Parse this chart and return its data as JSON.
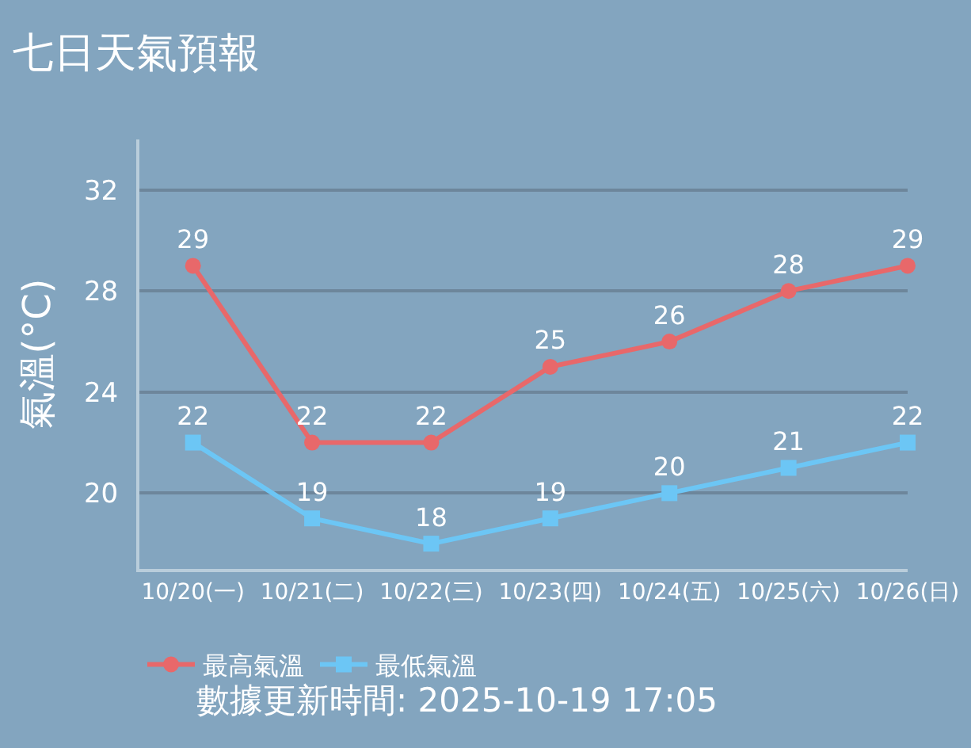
{
  "chart_data": {
    "type": "line",
    "title": "七日天氣預報",
    "ylabel": "氣溫(°C)",
    "categories": [
      "10/20(一)",
      "10/21(二)",
      "10/22(三)",
      "10/23(四)",
      "10/24(五)",
      "10/25(六)",
      "10/26(日)"
    ],
    "series": [
      {
        "name": "最高氣溫",
        "color": "#e8686a",
        "marker": "circle",
        "values": [
          29,
          22,
          22,
          25,
          26,
          28,
          29
        ]
      },
      {
        "name": "最低氣溫",
        "color": "#6cc6f5",
        "marker": "square",
        "values": [
          22,
          19,
          18,
          19,
          20,
          21,
          22
        ]
      }
    ],
    "ylim": [
      17,
      34
    ],
    "yticks": [
      20,
      24,
      28,
      32
    ],
    "grid": "y",
    "legend": "bottom left",
    "data_labels": true,
    "annotations": [
      "數據更新時間: 2025-10-19 17:05"
    ]
  }
}
